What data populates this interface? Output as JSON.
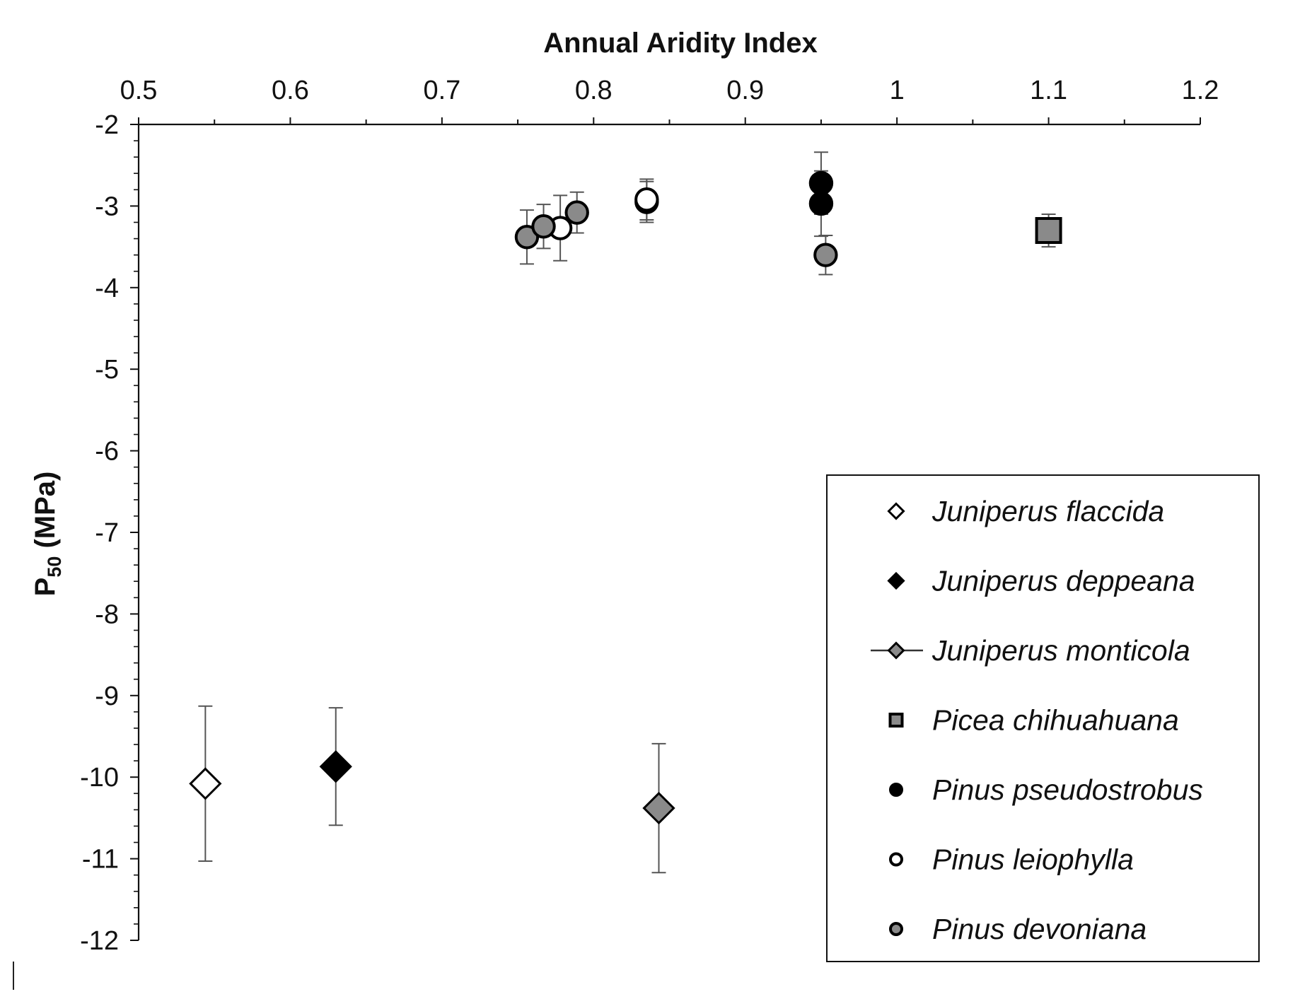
{
  "chart_data": {
    "type": "scatter",
    "xlabel": "Annual Aridity Index",
    "ylabel_main": "P",
    "ylabel_sub": "50",
    "ylabel_unit": " (MPa)",
    "x_axis_position": "top",
    "xlim": [
      0.5,
      1.2
    ],
    "ylim": [
      -12,
      -2
    ],
    "x_ticks": [
      "0.5",
      "0.6",
      "0.7",
      "0.8",
      "0.9",
      "1",
      "1.1",
      "1.2"
    ],
    "y_ticks": [
      "-2",
      "-3",
      "-4",
      "-5",
      "-6",
      "-7",
      "-8",
      "-9",
      "-10",
      "-11",
      "-12"
    ],
    "grid": false,
    "legend_position": "bottom-right",
    "series": [
      {
        "name": "Juniperus flaccida",
        "marker": "diamond",
        "fill": "#ffffff",
        "points": [
          {
            "x": 0.544,
            "y": -10.08,
            "err": 0.95
          }
        ]
      },
      {
        "name": "Juniperus deppeana",
        "marker": "diamond",
        "fill": "#000000",
        "points": [
          {
            "x": 0.63,
            "y": -9.87,
            "err": 0.72
          }
        ]
      },
      {
        "name": "Juniperus monticola",
        "marker": "diamond",
        "fill": "#8a8a8a",
        "points": [
          {
            "x": 0.843,
            "y": -10.38,
            "err": 0.79
          }
        ]
      },
      {
        "name": "Picea chihuahuana",
        "marker": "square",
        "fill": "#8a8a8a",
        "points": [
          {
            "x": 1.1,
            "y": -3.3,
            "err": 0.2
          }
        ]
      },
      {
        "name": "Pinus pseudostrobus",
        "marker": "circle",
        "fill": "#000000",
        "points": [
          {
            "x": 0.835,
            "y": -2.95,
            "err": 0.25
          },
          {
            "x": 0.95,
            "y": -2.72,
            "err": 0.38
          },
          {
            "x": 0.95,
            "y": -2.97,
            "err": 0.4
          }
        ]
      },
      {
        "name": "Pinus leiophylla",
        "marker": "circle",
        "fill": "#ffffff",
        "points": [
          {
            "x": 0.778,
            "y": -3.27,
            "err": 0.4
          },
          {
            "x": 0.835,
            "y": -2.92,
            "err": 0.25
          }
        ]
      },
      {
        "name": "Pinus devoniana",
        "marker": "circle",
        "fill": "#8a8a8a",
        "points": [
          {
            "x": 0.756,
            "y": -3.38,
            "err": 0.33
          },
          {
            "x": 0.767,
            "y": -3.25,
            "err": 0.27
          },
          {
            "x": 0.789,
            "y": -3.08,
            "err": 0.25
          },
          {
            "x": 0.953,
            "y": -3.6,
            "err": 0.24
          }
        ]
      }
    ]
  }
}
